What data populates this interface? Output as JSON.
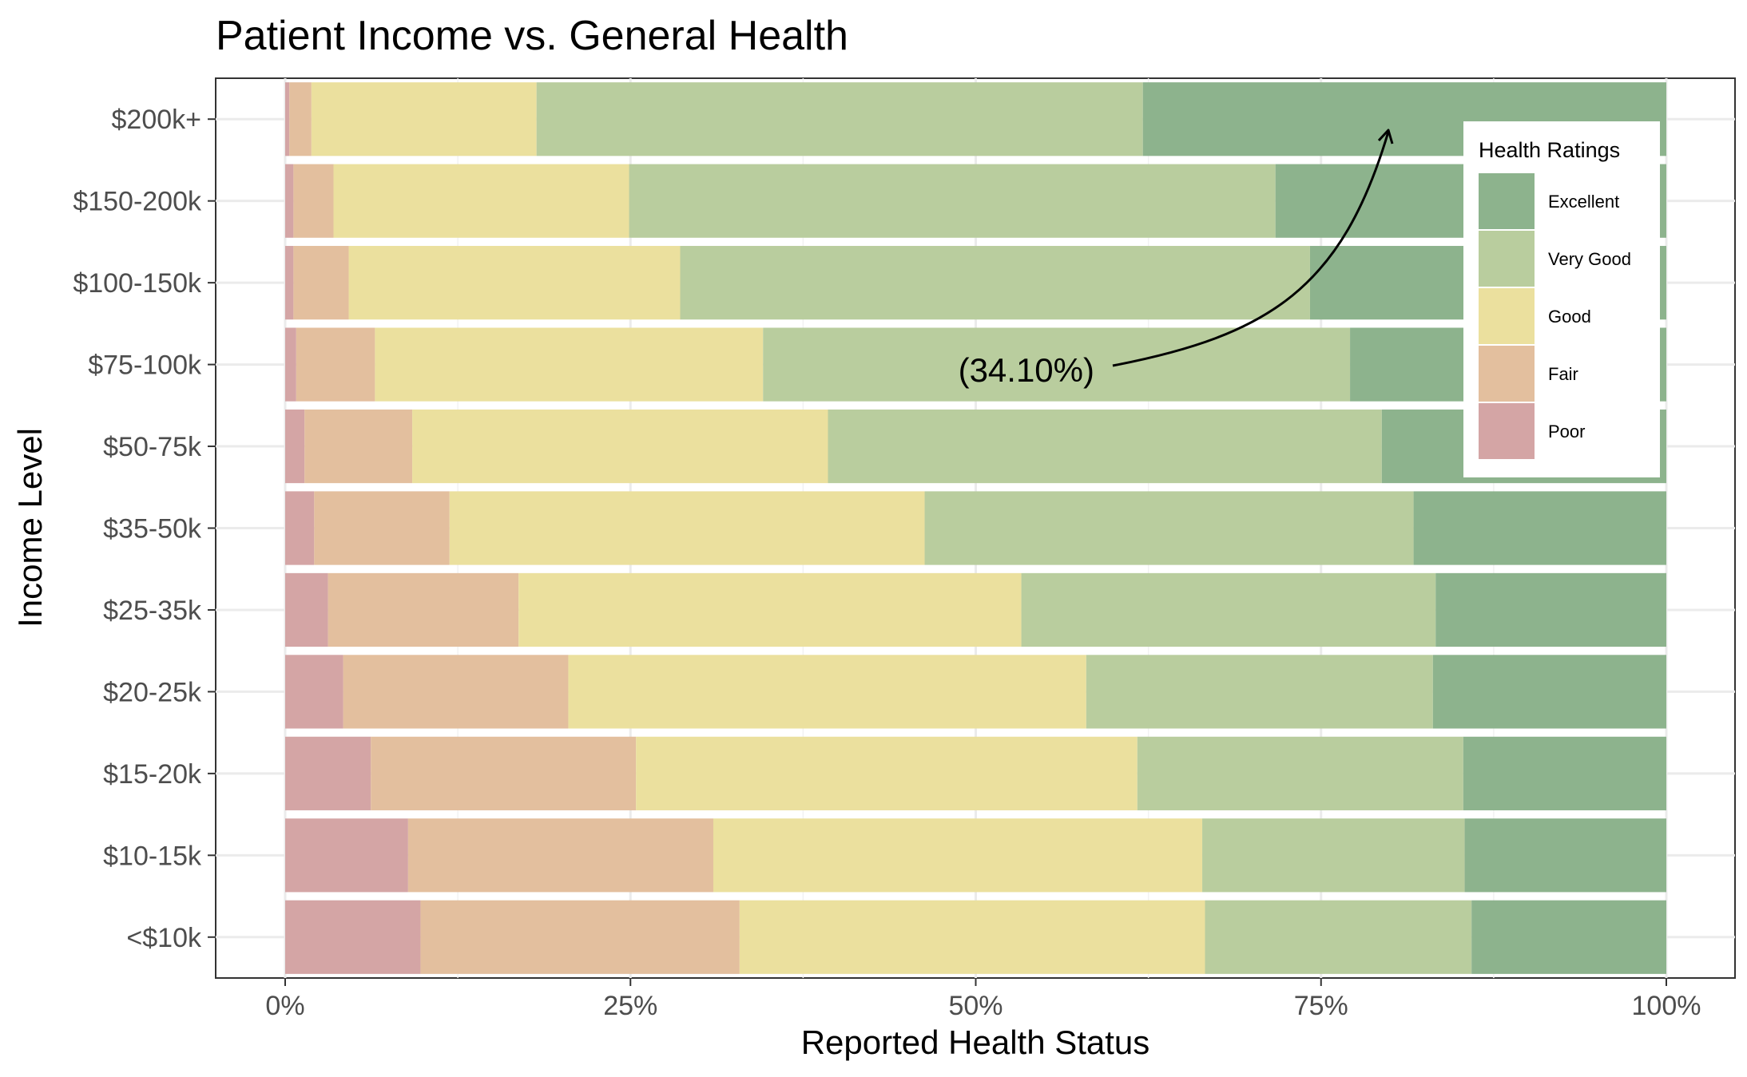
{
  "chart_data": {
    "type": "bar",
    "orientation": "horizontal",
    "stacked": "percent",
    "title": "Patient Income vs. General Health",
    "xlabel": "Reported Health Status",
    "ylabel": "Income Level",
    "xlim": [
      0,
      100
    ],
    "x_ticks": [
      "0%",
      "25%",
      "50%",
      "75%",
      "100%"
    ],
    "x_tick_values": [
      0,
      25,
      50,
      75,
      100
    ],
    "grid": true,
    "categories": [
      "$200k+",
      "$150-200k",
      "$100-150k",
      "$75-100k",
      "$50-75k",
      "$35-50k",
      "$25-35k",
      "$20-25k",
      "$15-20k",
      "$10-15k",
      "<$10k"
    ],
    "legend": {
      "title": "Health Ratings",
      "placement": "top-right",
      "entries": [
        "Excellent",
        "Very Good",
        "Good",
        "Fair",
        "Poor"
      ]
    },
    "series": [
      {
        "name": "Poor",
        "color": "#d4a5a5",
        "values": [
          0.3,
          0.6,
          0.6,
          0.8,
          1.4,
          2.1,
          3.1,
          4.2,
          6.2,
          8.9,
          9.8
        ]
      },
      {
        "name": "Fair",
        "color": "#e3bf9e",
        "values": [
          1.6,
          2.9,
          4.0,
          5.7,
          7.8,
          9.8,
          13.8,
          16.3,
          19.2,
          22.1,
          23.1
        ]
      },
      {
        "name": "Good",
        "color": "#ebe09e",
        "values": [
          16.3,
          21.4,
          24.0,
          28.1,
          30.1,
          34.4,
          36.4,
          37.5,
          36.3,
          35.4,
          33.7
        ]
      },
      {
        "name": "Very Good",
        "color": "#b9cd9e",
        "values": [
          43.9,
          46.8,
          45.6,
          42.5,
          40.1,
          35.4,
          30.0,
          25.1,
          23.6,
          19.0,
          19.3
        ]
      },
      {
        "name": "Excellent",
        "color": "#8db38d",
        "values": [
          37.9,
          28.3,
          25.8,
          22.9,
          20.6,
          18.3,
          16.7,
          16.9,
          14.7,
          14.6,
          14.1
        ]
      }
    ],
    "annotations": [
      {
        "text": "(34.10%)",
        "arrow_target_x": 80.1,
        "arrow_target_category": "$200k+"
      }
    ]
  }
}
